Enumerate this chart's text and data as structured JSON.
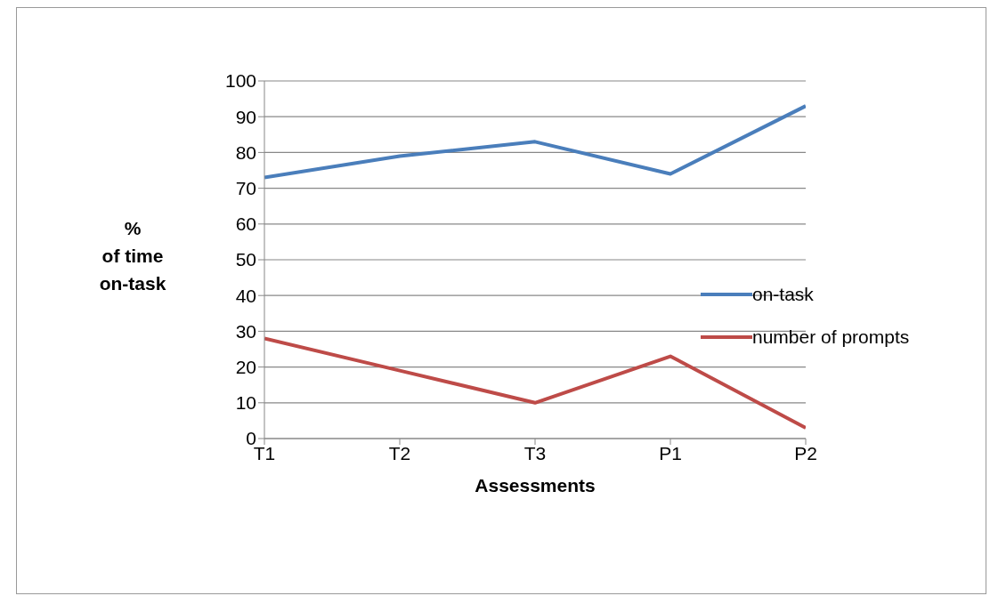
{
  "chart_data": {
    "type": "line",
    "xlabel": "Assessments",
    "ylabel": "%\nof time\non-task",
    "categories": [
      "T1",
      "T2",
      "T3",
      "P1",
      "P2"
    ],
    "series": [
      {
        "name": "on-task",
        "color": "#4a7ebb",
        "values": [
          73,
          79,
          83,
          74,
          93
        ]
      },
      {
        "name": "number of prompts",
        "color": "#be4b48",
        "values": [
          28,
          19,
          10,
          23,
          3
        ]
      }
    ],
    "ylim": [
      0,
      100
    ],
    "yticks": [
      0,
      10,
      20,
      30,
      40,
      50,
      60,
      70,
      80,
      90,
      100
    ],
    "grid": "y",
    "legend": "right",
    "marker": "none",
    "line_style": "solid"
  }
}
